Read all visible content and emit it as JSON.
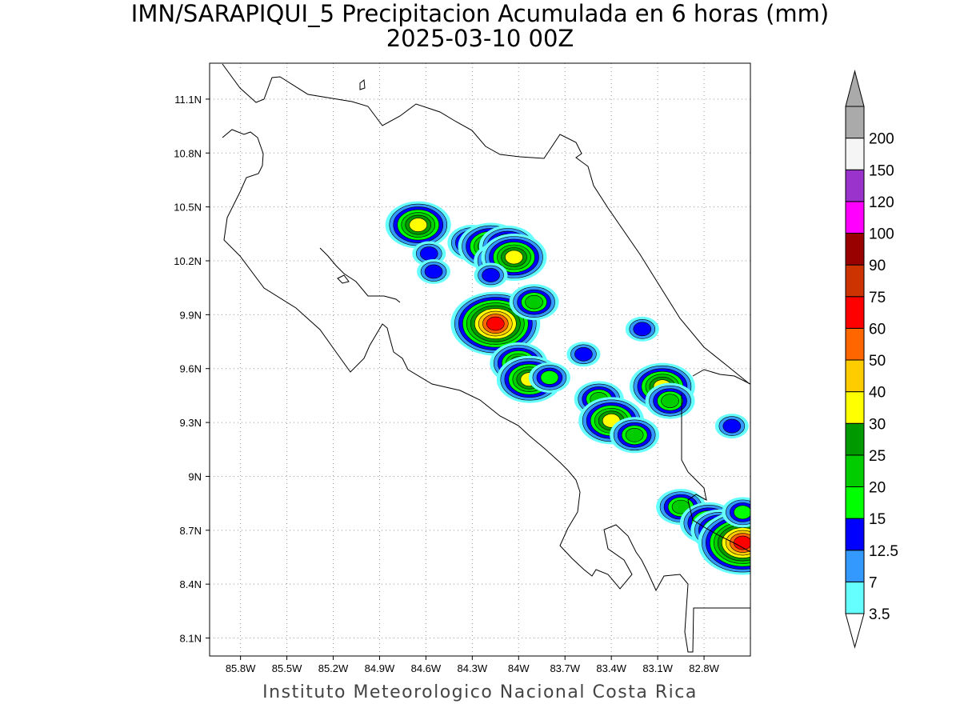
{
  "title": {
    "line1": "IMN/SARAPIQUI_5 Precipitacion Acumulada en 6 horas (mm)",
    "line2": "2025-03-10 00Z"
  },
  "credit": "Instituto Meteorologico Nacional Costa Rica",
  "map": {
    "lon_range": [
      -86.0,
      -82.5
    ],
    "lat_range": [
      8.0,
      11.3
    ],
    "lon_ticks": [
      "85.8W",
      "85.5W",
      "85.2W",
      "84.9W",
      "84.6W",
      "84.3W",
      "84W",
      "83.7W",
      "83.4W",
      "83.1W",
      "82.8W"
    ],
    "lat_ticks": [
      "8.1N",
      "8.4N",
      "8.7N",
      "9N",
      "9.3N",
      "9.6N",
      "9.9N",
      "10.2N",
      "10.5N",
      "10.8N",
      "11.1N"
    ],
    "grid": "dotted"
  },
  "colorbar": {
    "levels": [
      "3.5",
      "7",
      "12.5",
      "15",
      "20",
      "25",
      "30",
      "40",
      "50",
      "60",
      "75",
      "90",
      "100",
      "120",
      "150",
      "200"
    ],
    "colors": [
      "#66ffff",
      "#3399ff",
      "#0000ff",
      "#00ff00",
      "#00cc00",
      "#009900",
      "#ffff00",
      "#ffcc00",
      "#ff6600",
      "#ff0000",
      "#cc3300",
      "#990000",
      "#ff00ff",
      "#9933cc",
      "#f5f5f5",
      "#aaaaaa"
    ]
  },
  "precip_cells": [
    {
      "lon": -84.65,
      "lat": 10.4,
      "max": 30
    },
    {
      "lon": -84.58,
      "lat": 10.24,
      "max": 12.5
    },
    {
      "lon": -84.55,
      "lat": 10.14,
      "max": 12.5
    },
    {
      "lon": -84.3,
      "lat": 10.3,
      "max": 20
    },
    {
      "lon": -84.18,
      "lat": 10.28,
      "max": 30
    },
    {
      "lon": -84.07,
      "lat": 10.28,
      "max": 25
    },
    {
      "lon": -84.13,
      "lat": 10.2,
      "max": 20
    },
    {
      "lon": -84.03,
      "lat": 10.22,
      "max": 30
    },
    {
      "lon": -84.18,
      "lat": 10.12,
      "max": 12.5
    },
    {
      "lon": -84.15,
      "lat": 9.85,
      "max": 60
    },
    {
      "lon": -83.9,
      "lat": 9.97,
      "max": 20
    },
    {
      "lon": -84.0,
      "lat": 9.63,
      "max": 25
    },
    {
      "lon": -83.93,
      "lat": 9.54,
      "max": 30
    },
    {
      "lon": -83.8,
      "lat": 9.55,
      "max": 15
    },
    {
      "lon": -83.48,
      "lat": 9.43,
      "max": 20
    },
    {
      "lon": -83.4,
      "lat": 9.31,
      "max": 30
    },
    {
      "lon": -83.25,
      "lat": 9.23,
      "max": 20
    },
    {
      "lon": -83.07,
      "lat": 9.5,
      "max": 30
    },
    {
      "lon": -83.02,
      "lat": 9.42,
      "max": 20
    },
    {
      "lon": -83.2,
      "lat": 9.82,
      "max": 12.5
    },
    {
      "lon": -83.58,
      "lat": 9.68,
      "max": 12.5
    },
    {
      "lon": -82.95,
      "lat": 8.83,
      "max": 20
    },
    {
      "lon": -82.77,
      "lat": 8.74,
      "max": 25
    },
    {
      "lon": -82.7,
      "lat": 8.7,
      "max": 25
    },
    {
      "lon": -82.55,
      "lat": 8.63,
      "max": 60
    },
    {
      "lon": -82.62,
      "lat": 9.28,
      "max": 12.5
    },
    {
      "lon": -82.55,
      "lat": 8.8,
      "max": 15
    }
  ]
}
